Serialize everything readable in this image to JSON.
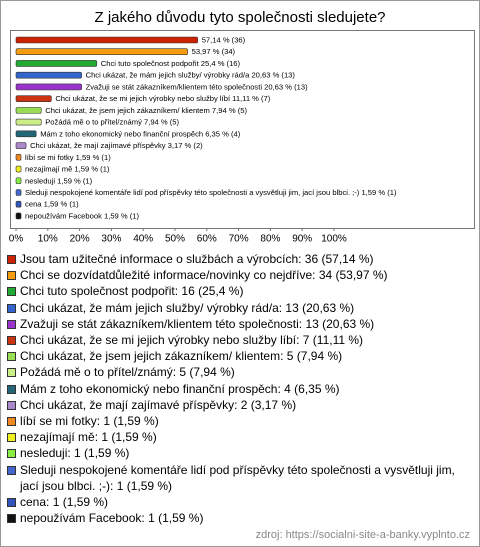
{
  "chart_data": {
    "type": "hbar",
    "title": "Z jakého důvodu tyto společnosti sledujete?",
    "categories": [
      "Jsou tam užitečné informace o službách a výrobcích: 36 (57,14 %)",
      "Chci se dozvídatdůležité informace/novinky co nejdříve: 34 (53,97 %)",
      "Chci tuto společnost podpořit: 16 (25,4 %)",
      "Chci ukázat, že mám jejich služby/ výrobky rád/a: 13 (20,63 %)",
      "Zvažuji se stát zákazníkem/klientem této společnosti: 13 (20,63 %)",
      "Chci ukázat, že se mi jejich výrobky nebo služby líbí: 7 (11,11 %)",
      "Chci ukázat, že jsem jejich zákazníkem/ klientem: 5 (7,94 %)",
      "Požádá mě o to přítel/známý: 5 (7,94 %)",
      "Mám z toho ekonomický nebo finanční prospěch: 4 (6,35 %)",
      "Chci ukázat, že mají zajímavé příspěvky: 2 (3,17 %)",
      "líbí se mi fotky: 1 (1,59 %)",
      "nezajímají mě: 1 (1,59 %)",
      "nesleduji: 1 (1,59 %)",
      "Sleduji nespokojené komentáře lidí pod příspěvky této společnosti a vysvětluji jim, jací jsou blbci. ;-): 1 (1,59 %)",
      "cena: 1 (1,59 %)",
      "nepoužívám Facebook: 1 (1,59 %)"
    ],
    "values": [
      57.14,
      53.97,
      25.4,
      20.63,
      20.63,
      11.11,
      7.94,
      7.94,
      6.35,
      3.17,
      1.59,
      1.59,
      1.59,
      1.59,
      1.59,
      1.59
    ],
    "value_labels": [
      "57,14 % (36)",
      "53,97 % (34)",
      "Chci tuto společnost podpořit 25,4 % (16)",
      "Chci ukázat, že mám jejich služby/ výrobky rád/a 20,63 % (13)",
      "Zvažuji se stát zákazníkem/klientem této společnosti 20,63 % (13)",
      "Chci ukázat, že se mi jejich výrobky nebo služby líbí 11,11 % (7)",
      "Chci ukázat, že jsem jejich zákazníkem/ klientem 7,94 % (5)",
      "Požádá mě o to přítel/známý 7,94 % (5)",
      "Mám z toho ekonomický nebo finanční prospěch 6,35 % (4)",
      "Chci ukázat, že mají zajímavé příspěvky 3,17 % (2)",
      "líbí se mi fotky 1,59 % (1)",
      "nezajímají mě 1,59 % (1)",
      "nesleduji 1,59 % (1)",
      "Sleduji nespokojené komentáře lidí pod příspěvky této společnosti a vysvětluji jim, jací jsou blbci. ;-) 1,59 % (1)",
      "cena 1,59 % (1)",
      "nepoužívám Facebook 1,59 % (1)"
    ],
    "colors": [
      "#cc2200",
      "#f39c12",
      "#22aa33",
      "#3366cc",
      "#9933cc",
      "#cc3311",
      "#99dd55",
      "#ccee88",
      "#226677",
      "#aa88cc",
      "#ee8822",
      "#eeee22",
      "#88ee44",
      "#4466cc",
      "#3355bb",
      "#111111"
    ],
    "xlim": [
      0,
      100
    ],
    "xticks": [
      {
        "value": 0,
        "label": "0%"
      },
      {
        "value": 10,
        "label": "10%"
      },
      {
        "value": 20,
        "label": "20%"
      },
      {
        "value": 30,
        "label": "30%"
      },
      {
        "value": 40,
        "label": "40%"
      },
      {
        "value": 50,
        "label": "50%"
      },
      {
        "value": 60,
        "label": "60%"
      },
      {
        "value": 70,
        "label": "70%"
      },
      {
        "value": 80,
        "label": "80%"
      },
      {
        "value": 90,
        "label": "90%"
      },
      {
        "value": 100,
        "label": "100%"
      }
    ],
    "source": "zdroj: https://socialni-site-a-banky.vyplnto.cz"
  }
}
